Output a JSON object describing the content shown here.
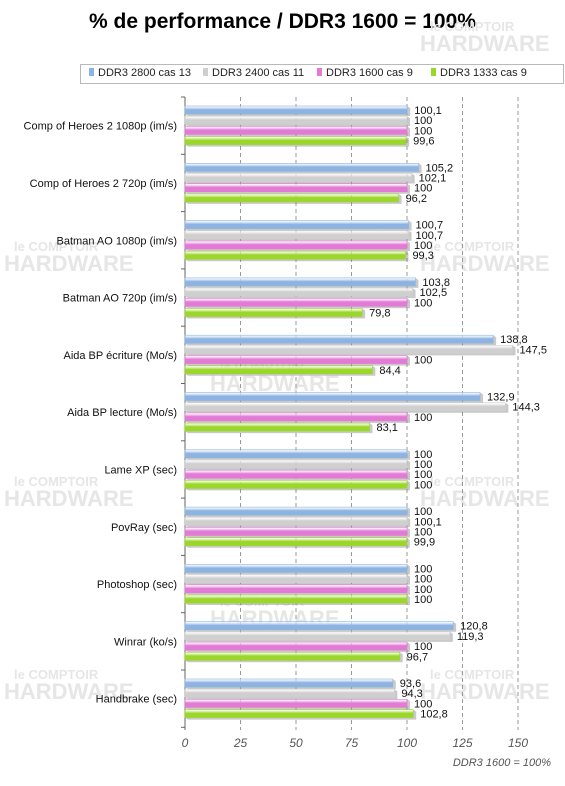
{
  "chart_data": {
    "type": "bar",
    "orientation": "horizontal",
    "title": "% de performance / DDR3 1600 = 100%",
    "categories": [
      "Comp of Heroes 2 1080p (im/s)",
      "Comp of Heroes 2 720p (im/s)",
      "Batman AO 1080p (im/s)",
      "Batman AO 720p (im/s)",
      "Aida BP écriture (Mo/s)",
      "Aida BP lecture (Mo/s)",
      "Lame XP (sec)",
      "PovRay (sec)",
      "Photoshop (sec)",
      "Winrar (ko/s)",
      "Handbrake (sec)"
    ],
    "series": [
      {
        "name": "DDR3 2800 cas 13",
        "color": "#8db3e2",
        "values": [
          100.1,
          105.2,
          100.7,
          103.8,
          138.8,
          132.9,
          100,
          100,
          100,
          120.8,
          93.6
        ],
        "labels": [
          "100,1",
          "105,2",
          "100,7",
          "103,8",
          "138,8",
          "132,9",
          "100",
          "100",
          "100",
          "120,8",
          "93,6"
        ]
      },
      {
        "name": "DDR3 2400 cas 11",
        "color": "#cfcfcf",
        "values": [
          100,
          102.1,
          100.7,
          102.5,
          147.5,
          144.3,
          100,
          100.1,
          100,
          119.3,
          94.3
        ],
        "labels": [
          "100",
          "102,1",
          "100,7",
          "102,5",
          "147,5",
          "144,3",
          "100",
          "100,1",
          "100",
          "119,3",
          "94,3"
        ]
      },
      {
        "name": "DDR3 1600 cas 9",
        "color": "#e27ad6",
        "values": [
          100,
          100,
          100,
          100,
          100,
          100,
          100,
          100,
          100,
          100,
          100
        ],
        "labels": [
          "100",
          "100",
          "100",
          "100",
          "100",
          "100",
          "100",
          "100",
          "100",
          "100",
          "100"
        ]
      },
      {
        "name": "DDR3 1333 cas 9",
        "color": "#9bd62a",
        "values": [
          99.6,
          96.2,
          99.3,
          79.8,
          84.4,
          83.1,
          100,
          99.9,
          100,
          96.7,
          102.8
        ],
        "labels": [
          "99,6",
          "96,2",
          "99,3",
          "79,8",
          "84,4",
          "83,1",
          "100",
          "99,9",
          "100",
          "96,7",
          "102,8"
        ]
      }
    ],
    "xlim": [
      0,
      150
    ],
    "x_ticks": [
      "0",
      "25",
      "50",
      "75",
      "100",
      "125",
      "150"
    ],
    "grid": true,
    "legend_position": "top",
    "footnote": "DDR3 1600 = 100%"
  },
  "watermark": {
    "top": "le COMPTOIR",
    "bottom": "HARDWARE"
  }
}
